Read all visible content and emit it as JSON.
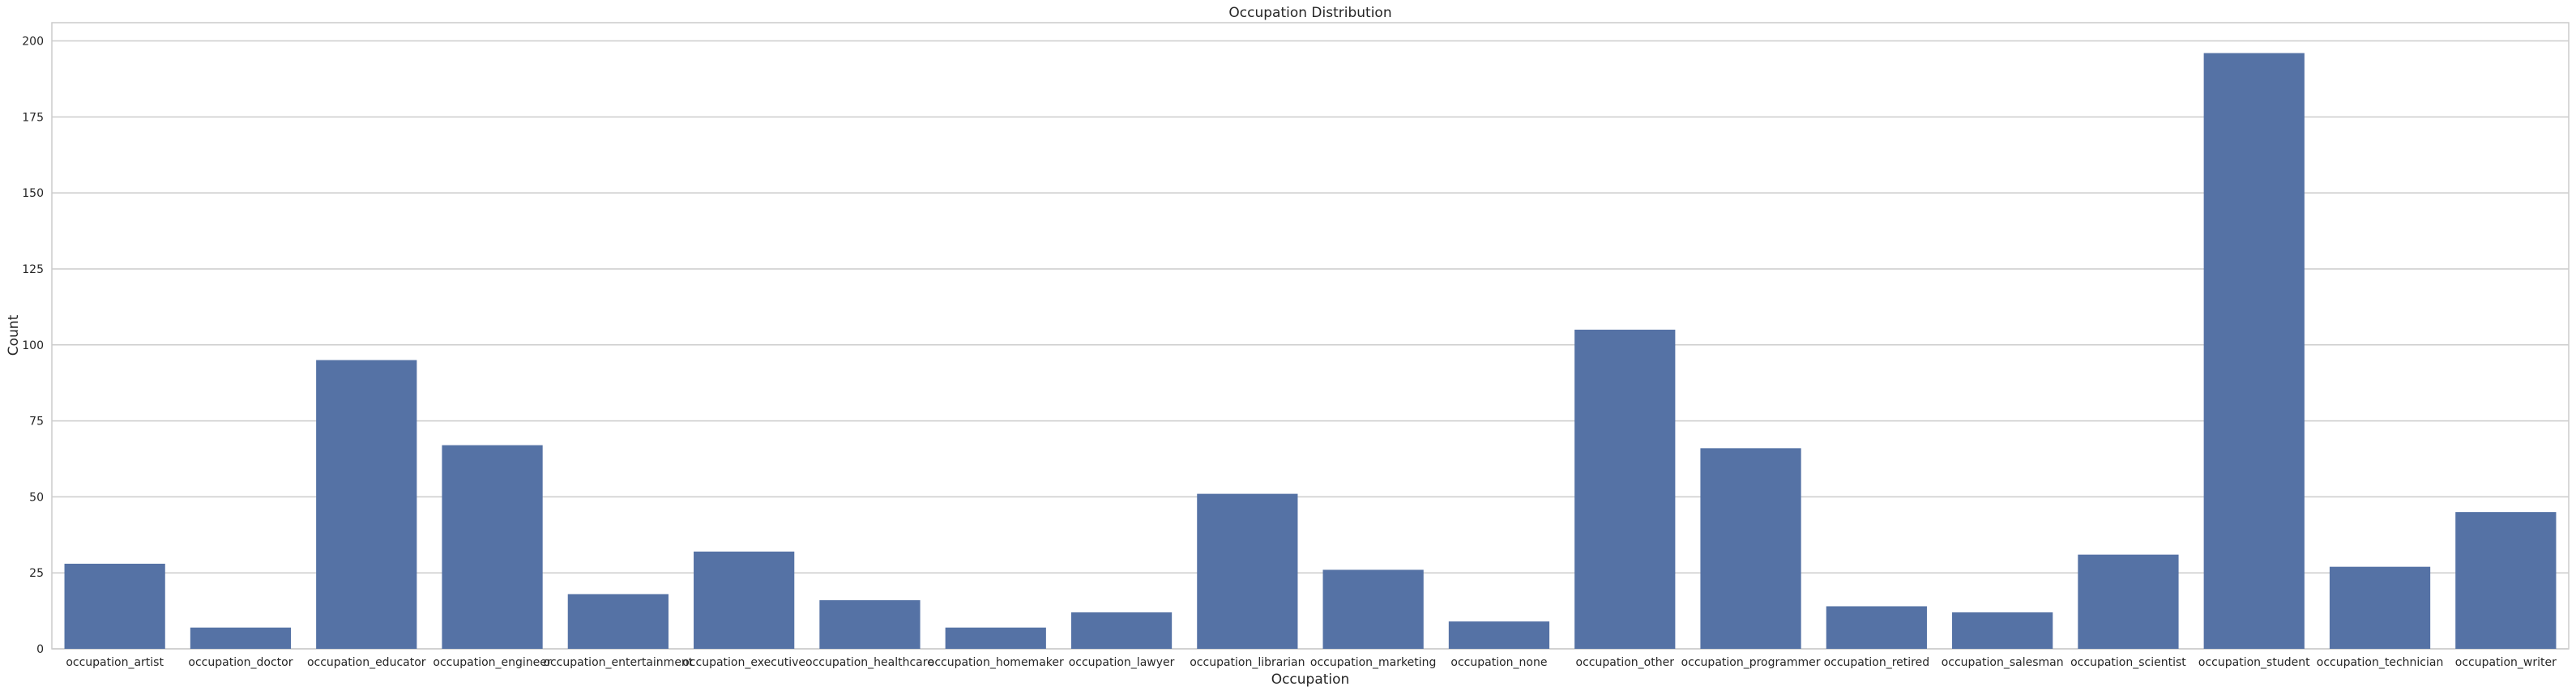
{
  "chart_data": {
    "type": "bar",
    "title": "Occupation Distribution",
    "xlabel": "Occupation",
    "ylabel": "Count",
    "categories": [
      "occupation_artist",
      "occupation_doctor",
      "occupation_educator",
      "occupation_engineer",
      "occupation_entertainment",
      "occupation_executive",
      "occupation_healthcare",
      "occupation_homemaker",
      "occupation_lawyer",
      "occupation_librarian",
      "occupation_marketing",
      "occupation_none",
      "occupation_other",
      "occupation_programmer",
      "occupation_retired",
      "occupation_salesman",
      "occupation_scientist",
      "occupation_student",
      "occupation_technician",
      "occupation_writer"
    ],
    "values": [
      28,
      7,
      95,
      67,
      18,
      32,
      16,
      7,
      12,
      51,
      26,
      9,
      105,
      66,
      14,
      12,
      31,
      196,
      27,
      45
    ],
    "ylim": [
      0,
      206
    ],
    "yticks": [
      0,
      25,
      50,
      75,
      100,
      125,
      150,
      175,
      200
    ],
    "grid": true,
    "bar_color": "#5572a5"
  }
}
